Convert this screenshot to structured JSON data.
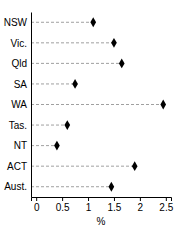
{
  "chart_data": {
    "type": "dot",
    "orientation": "horizontal",
    "categories": [
      "NSW",
      "Vic.",
      "Qld",
      "SA",
      "WA",
      "Tas.",
      "NT",
      "ACT",
      "Aust."
    ],
    "values": [
      1.1,
      1.5,
      1.65,
      0.75,
      2.45,
      0.6,
      0.4,
      1.9,
      1.45
    ],
    "color": "#000000",
    "marker": "diamond",
    "line_style": "dashed",
    "x_label": "%",
    "xlim": [
      -0.1,
      2.6
    ],
    "xticks": [
      0,
      0.5,
      1,
      1.5,
      2,
      2.5
    ]
  }
}
